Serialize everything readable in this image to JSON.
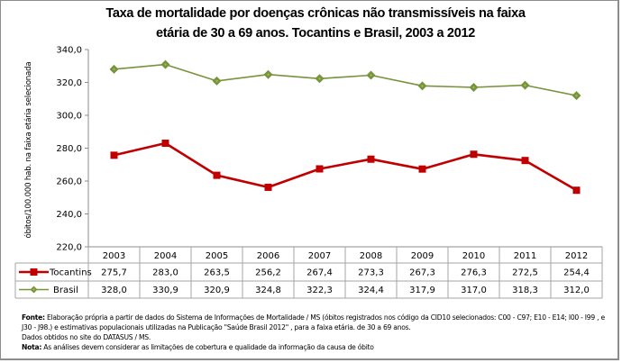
{
  "chart_data": {
    "type": "line",
    "title": "Taxa de mortalidade por doenças crônicas não transmissíveis na faixa etária de 30 a 69 anos. Tocantins e Brasil, 2003 a 2012",
    "title_line1": "Taxa de mortalidade por doenças crônicas não transmissíveis na faixa",
    "title_line2": "etária de 30 a 69 anos. Tocantins e Brasil, 2003 a 2012",
    "xlabel": "",
    "ylabel": "óbitos/100.000 hab. na faixa etária selecionada",
    "ylim": [
      220,
      340
    ],
    "yticks": [
      220,
      240,
      260,
      280,
      300,
      320,
      340
    ],
    "ytick_labels": [
      "220,0",
      "240,0",
      "260,0",
      "280,0",
      "300,0",
      "320,0",
      "340,0"
    ],
    "grid": false,
    "legend": "data-table-left",
    "categories": [
      "2003",
      "2004",
      "2005",
      "2006",
      "2007",
      "2008",
      "2009",
      "2010",
      "2011",
      "2012"
    ],
    "series": [
      {
        "name": "Tocantins",
        "color": "#c00000",
        "marker": "square",
        "values": [
          275.7,
          283.0,
          263.5,
          256.2,
          267.4,
          273.3,
          267.3,
          276.3,
          272.5,
          254.4
        ],
        "labels": [
          "275,7",
          "283,0",
          "263,5",
          "256,2",
          "267,4",
          "273,3",
          "267,3",
          "276,3",
          "272,5",
          "254,4"
        ]
      },
      {
        "name": "Brasil",
        "color": "#77933c",
        "marker": "diamond",
        "values": [
          328.0,
          330.9,
          320.9,
          324.8,
          322.3,
          324.4,
          317.9,
          317.0,
          318.3,
          312.0
        ],
        "labels": [
          "328,0",
          "330,9",
          "320,9",
          "324,8",
          "322,3",
          "324,4",
          "317,9",
          "317,0",
          "318,3",
          "312,0"
        ]
      }
    ]
  },
  "notes": {
    "fonte_label": "Fonte:",
    "fonte_text": "Elaboração própria a partir de dados do Sistema de Informações de Mortalidade / MS (óbitos registrados nos código da CID10 selecionados: C00 - C97; E10 - E14; I00 - I99 , e J30 - J98.) e estimativas populacionais utilizadas na Publicação \"Saúde Brasil 2012\" , para a faixa etária. de 30 a 69 anos.",
    "fonte_text2": "Dados obtidos no site do DATASUS / MS.",
    "nota_label": "Nota:",
    "nota_text": "As análises devem considerar as limitações de cobertura e qualidade da informação da causa de óbito"
  }
}
